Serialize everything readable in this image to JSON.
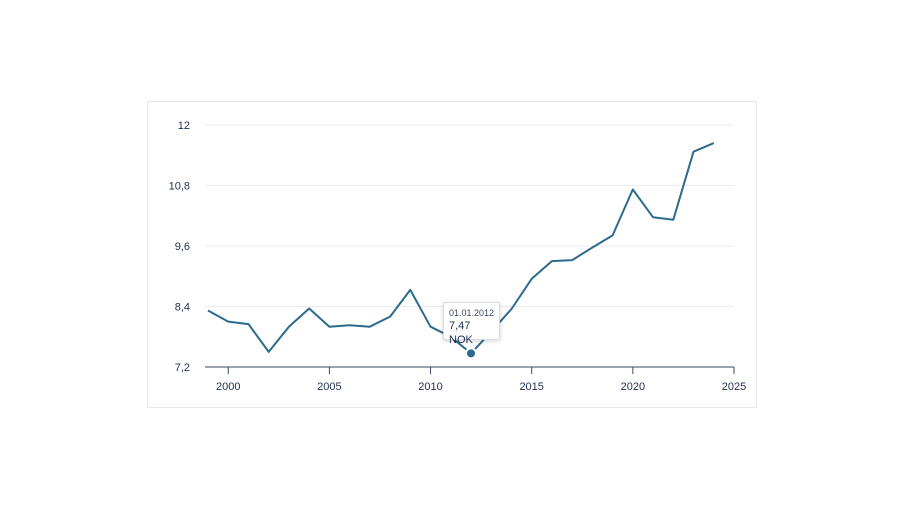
{
  "chart_data": {
    "type": "line",
    "title": "",
    "xlabel": "",
    "ylabel": "",
    "y_ticks": [
      "7,2",
      "8,4",
      "9,6",
      "10,8",
      "12"
    ],
    "y_tick_values": [
      7.2,
      8.4,
      9.6,
      10.8,
      12.0
    ],
    "ylim": [
      7.2,
      12.0
    ],
    "x_ticks": [
      "2000",
      "2005",
      "2010",
      "2015",
      "2020",
      "2025"
    ],
    "x_tick_values": [
      2000,
      2005,
      2010,
      2015,
      2020,
      2025
    ],
    "xlim": [
      1999,
      2025
    ],
    "grid": "horizontal",
    "colors": {
      "line": "#2c6a8e",
      "grid": "#e9ecef",
      "axis": "#3b4660",
      "text": "#1f2d4e",
      "marker": "#2c6a8e"
    },
    "series": [
      {
        "x": [
          1999,
          2000,
          2001,
          2002,
          2003,
          2004,
          2005,
          2006,
          2007,
          2008,
          2009,
          2010,
          2011,
          2012,
          2013,
          2014,
          2015,
          2016,
          2017,
          2018,
          2019,
          2020,
          2021,
          2022,
          2023,
          2024
        ],
        "values": [
          8.32,
          8.1,
          8.05,
          7.5,
          8.0,
          8.36,
          8.0,
          8.03,
          8.0,
          8.2,
          8.73,
          8.0,
          7.8,
          7.47,
          7.9,
          8.35,
          8.95,
          9.3,
          9.32,
          9.57,
          9.81,
          10.72,
          10.17,
          10.12,
          11.47,
          11.64
        ]
      }
    ],
    "tooltip": {
      "date": "01.01.2012",
      "value": "7,47 NOK",
      "x": 2012,
      "y": 7.47
    }
  }
}
